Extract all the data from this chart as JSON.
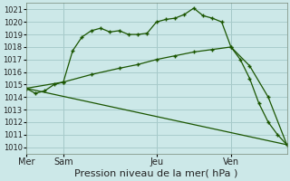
{
  "background_color": "#cce8e8",
  "plot_bg_color": "#cce8e8",
  "grid_color": "#a8cccc",
  "line_color": "#1a5500",
  "ylim": [
    1009.5,
    1021.5
  ],
  "ytick_vals": [
    1010,
    1011,
    1012,
    1013,
    1014,
    1015,
    1016,
    1017,
    1018,
    1019,
    1020,
    1021
  ],
  "xlabel": "Pression niveau de la mer( hPa )",
  "day_labels": [
    "Mer",
    "Sam",
    "Jeu",
    "Ven"
  ],
  "day_positions": [
    0,
    4,
    14,
    22
  ],
  "vline_positions": [
    4,
    14,
    22
  ],
  "xlim": [
    0,
    28
  ],
  "series1_x": [
    0,
    1,
    2,
    3,
    4,
    5,
    6,
    7,
    8,
    9,
    10,
    11,
    12,
    13,
    14,
    15,
    16,
    17,
    18,
    19,
    20,
    21,
    22,
    23,
    24,
    25,
    26,
    27,
    28
  ],
  "series1_y": [
    1014.7,
    1014.3,
    1014.5,
    1015.0,
    1015.2,
    1017.7,
    1018.8,
    1019.3,
    1019.5,
    1019.2,
    1019.3,
    1019.0,
    1019.0,
    1019.1,
    1020.0,
    1020.2,
    1020.3,
    1020.6,
    1021.1,
    1020.5,
    1020.3,
    1020.0,
    1018.0,
    1017.0,
    1015.5,
    1013.5,
    1012.0,
    1011.0,
    1010.2
  ],
  "series2_x": [
    0,
    4,
    7,
    10,
    12,
    14,
    16,
    18,
    20,
    22,
    24,
    26,
    28
  ],
  "series2_y": [
    1014.7,
    1015.2,
    1015.8,
    1016.3,
    1016.6,
    1017.0,
    1017.3,
    1017.6,
    1017.8,
    1018.0,
    1016.5,
    1014.0,
    1010.2
  ],
  "series3_x": [
    0,
    28
  ],
  "series3_y": [
    1014.7,
    1010.2
  ],
  "xlabel_fontsize": 8,
  "tick_fontsize": 6,
  "xtick_fontsize": 7
}
